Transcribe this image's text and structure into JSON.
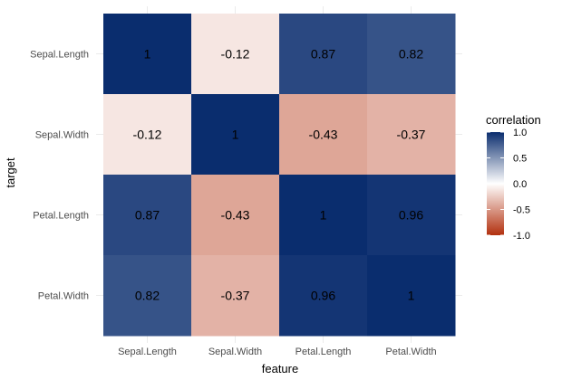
{
  "chart_data": {
    "type": "heatmap",
    "x_categories": [
      "Sepal.Length",
      "Sepal.Width",
      "Petal.Length",
      "Petal.Width"
    ],
    "y_categories": [
      "Sepal.Length",
      "Sepal.Width",
      "Petal.Length",
      "Petal.Width"
    ],
    "values": [
      [
        1,
        -0.12,
        0.87,
        0.82
      ],
      [
        -0.12,
        1,
        -0.43,
        -0.37
      ],
      [
        0.87,
        -0.43,
        1,
        0.96
      ],
      [
        0.82,
        -0.37,
        0.96,
        1
      ]
    ],
    "labels": [
      [
        "1",
        "-0.12",
        "0.87",
        "0.82"
      ],
      [
        "-0.12",
        "1",
        "-0.43",
        "-0.37"
      ],
      [
        "0.87",
        "-0.43",
        "1",
        "0.96"
      ],
      [
        "0.82",
        "-0.37",
        "0.96",
        "1"
      ]
    ],
    "xlabel": "feature",
    "ylabel": "target",
    "grid": true,
    "legend": {
      "title": "correlation",
      "position": "right",
      "range": [
        -1,
        1
      ],
      "ticks": [
        "1.0",
        "0.5",
        "0.0",
        "-0.5",
        "-1.0"
      ],
      "tick_values": [
        1,
        0.5,
        0,
        -0.5,
        -1
      ],
      "colors": {
        "low": "#b2300e",
        "mid": "#ffffff",
        "high": "#0a2d6e"
      }
    }
  }
}
